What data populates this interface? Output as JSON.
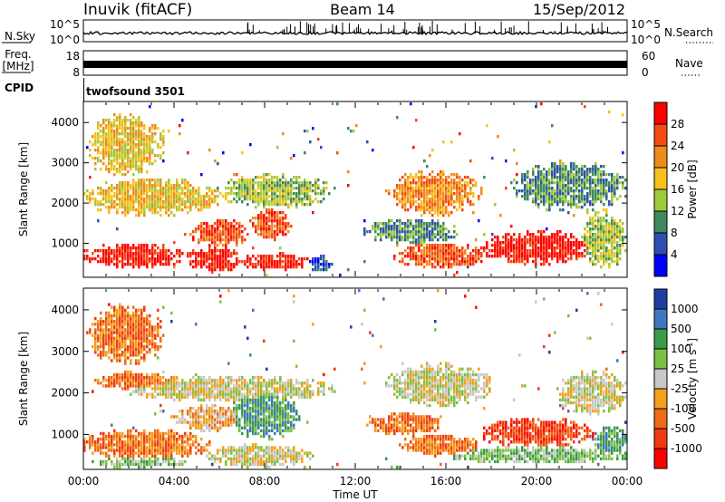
{
  "header": {
    "title": "Inuvik (fitACF)",
    "beam": "Beam 14",
    "date": "15/Sep/2012"
  },
  "top_panels": {
    "nsky_label": "N.Sky",
    "nsky_ticks": [
      "10^5",
      "10^0"
    ],
    "nsearch_label": "N.Search",
    "freq_label": "Freq.",
    "freq_unit": "[MHz]",
    "freq_ticks": [
      "18",
      "8"
    ],
    "nave_label": "Nave",
    "nave_ticks": [
      "60",
      "0"
    ],
    "cpid_label": "CPID",
    "cpid_value": "twofsound 3501"
  },
  "chart_data": [
    {
      "type": "heatmap",
      "panel": "power",
      "xlabel": "Time UT",
      "ylabel": "Slant Range [km]",
      "x_ticks": [
        "00:00",
        "04:00",
        "08:00",
        "12:00",
        "16:00",
        "20:00",
        "00:00"
      ],
      "y_ticks": [
        1000,
        2000,
        3000,
        4000
      ],
      "ylim": [
        180,
        4500
      ],
      "colorbar_label": "Power [dB]",
      "colorbar_ticks": [
        "4",
        "8",
        "12",
        "16",
        "20",
        "24",
        "28"
      ],
      "colorbar_colors": [
        "#0000ff",
        "#2f4fb0",
        "#3f8a5a",
        "#9ecb3a",
        "#f6c21b",
        "#f08a1c",
        "#f34b12",
        "#ff0000"
      ],
      "blobs": [
        {
          "t0": 0.0,
          "t1": 4.5,
          "r0": 400,
          "r1": 1000,
          "level": 7
        },
        {
          "t0": 4.5,
          "t1": 7.0,
          "r0": 300,
          "r1": 900,
          "level": 7
        },
        {
          "t0": 4.8,
          "t1": 7.2,
          "r0": 900,
          "r1": 1600,
          "level": 6
        },
        {
          "t0": 7.0,
          "t1": 10.0,
          "r0": 350,
          "r1": 750,
          "level": 7
        },
        {
          "t0": 7.4,
          "t1": 9.2,
          "r0": 1100,
          "r1": 1850,
          "level": 6
        },
        {
          "t0": 0.0,
          "t1": 6.0,
          "r0": 1700,
          "r1": 2600,
          "level": 4
        },
        {
          "t0": 6.0,
          "t1": 11.0,
          "r0": 1900,
          "r1": 2700,
          "level": 3
        },
        {
          "t0": 0.3,
          "t1": 3.5,
          "r0": 2700,
          "r1": 4200,
          "level": 4
        },
        {
          "t0": 10.0,
          "t1": 11.0,
          "r0": 300,
          "r1": 700,
          "level": 1
        },
        {
          "t0": 12.5,
          "t1": 16.5,
          "r0": 1000,
          "r1": 1600,
          "level": 2
        },
        {
          "t0": 13.5,
          "t1": 17.5,
          "r0": 1700,
          "r1": 2800,
          "level": 5
        },
        {
          "t0": 13.8,
          "t1": 17.8,
          "r0": 400,
          "r1": 1000,
          "level": 6
        },
        {
          "t0": 17.5,
          "t1": 22.5,
          "r0": 500,
          "r1": 1300,
          "level": 7
        },
        {
          "t0": 22.0,
          "t1": 24.0,
          "r0": 400,
          "r1": 1800,
          "level": 3
        },
        {
          "t0": 19.0,
          "t1": 24.0,
          "r0": 1800,
          "r1": 3000,
          "level": 2
        }
      ]
    },
    {
      "type": "heatmap",
      "panel": "velocity",
      "xlabel": "Time UT",
      "ylabel": "Slant Range [km]",
      "x_ticks": [
        "00:00",
        "04:00",
        "08:00",
        "12:00",
        "16:00",
        "20:00",
        "00:00"
      ],
      "y_ticks": [
        1000,
        2000,
        3000,
        4000
      ],
      "ylim": [
        180,
        4500
      ],
      "colorbar_label": "Velocity [m s^-1]",
      "colorbar_ticks": [
        "1000",
        "500",
        "100",
        "25",
        "-25",
        "-100",
        "-500",
        "-1000"
      ],
      "colorbar_colors": [
        "#1f3fa0",
        "#3f77c0",
        "#3c9a4a",
        "#7bc242",
        "#c8c8c8",
        "#f2a11a",
        "#f06a18",
        "#f23a10",
        "#ff0000"
      ],
      "blobs": [
        {
          "t0": 0.0,
          "t1": 5.5,
          "r0": 400,
          "r1": 1100,
          "level": 6
        },
        {
          "t0": 0.5,
          "t1": 4.5,
          "r0": 200,
          "r1": 450,
          "level": 3
        },
        {
          "t0": 5.5,
          "t1": 10.0,
          "r0": 220,
          "r1": 750,
          "level": 4
        },
        {
          "t0": 6.5,
          "t1": 9.5,
          "r0": 900,
          "r1": 2100,
          "level": 2
        },
        {
          "t0": 4.0,
          "t1": 7.0,
          "r0": 1100,
          "r1": 1700,
          "level": 5
        },
        {
          "t0": 2.0,
          "t1": 11.0,
          "r0": 1800,
          "r1": 2400,
          "level": 4
        },
        {
          "t0": 0.5,
          "t1": 4.0,
          "r0": 2100,
          "r1": 2500,
          "level": 6
        },
        {
          "t0": 0.3,
          "t1": 3.5,
          "r0": 2700,
          "r1": 4100,
          "level": 6
        },
        {
          "t0": 12.5,
          "t1": 16.0,
          "r0": 1000,
          "r1": 1500,
          "level": 6
        },
        {
          "t0": 13.5,
          "t1": 18.0,
          "r0": 1700,
          "r1": 2700,
          "level": 4
        },
        {
          "t0": 14.0,
          "t1": 17.5,
          "r0": 500,
          "r1": 1000,
          "level": 6
        },
        {
          "t0": 17.5,
          "t1": 22.5,
          "r0": 700,
          "r1": 1400,
          "level": 7
        },
        {
          "t0": 16.0,
          "t1": 24.0,
          "r0": 300,
          "r1": 700,
          "level": 3
        },
        {
          "t0": 21.0,
          "t1": 24.0,
          "r0": 1500,
          "r1": 2500,
          "level": 4
        },
        {
          "t0": 22.5,
          "t1": 24.0,
          "r0": 500,
          "r1": 1200,
          "level": 2
        }
      ]
    }
  ]
}
